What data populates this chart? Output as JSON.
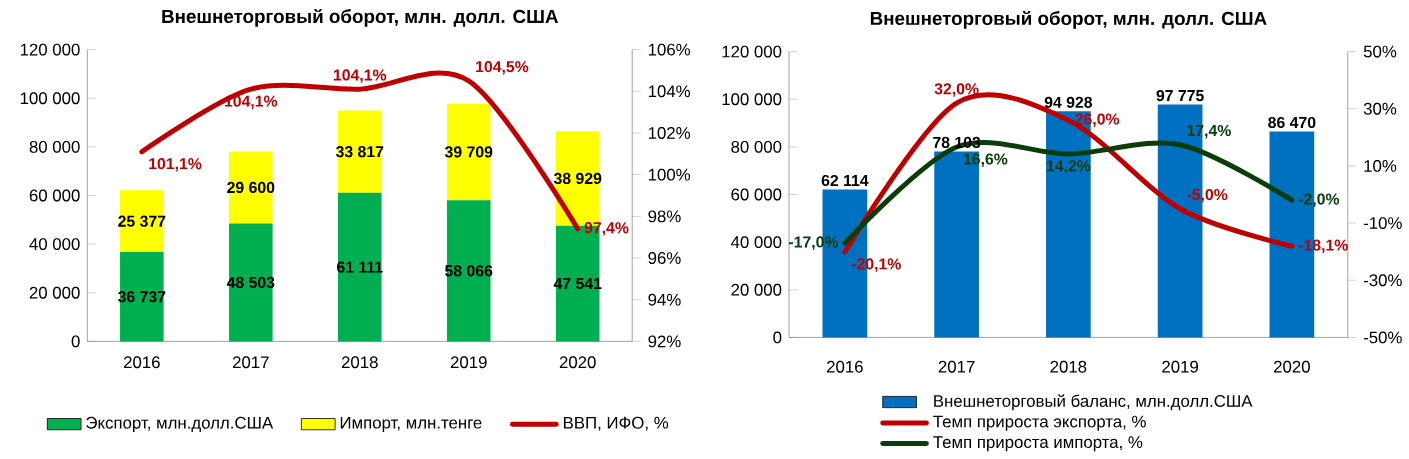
{
  "chart_data": [
    {
      "type": "bar",
      "title": "Внешнеторговый оборот, млн. долл. США",
      "stacked": true,
      "legend": "bottom",
      "categories": [
        "2016",
        "2017",
        "2018",
        "2019",
        "2020"
      ],
      "series": [
        {
          "name": "Экспорт, млн.долл.США",
          "color": "#00b050",
          "values": [
            36737,
            48503,
            61111,
            58066,
            47541
          ],
          "value_labels": [
            "36 737",
            "48 503",
            "61 111",
            "58 066",
            "47 541"
          ]
        },
        {
          "name": "Импорт, млн.тенге",
          "color": "#ffff00",
          "values": [
            25377,
            29600,
            33817,
            39709,
            38929
          ],
          "value_labels": [
            "25 377",
            "29 600",
            "33 817",
            "39 709",
            "38 929"
          ]
        },
        {
          "name": "ВВП, ИФО, %",
          "type": "line",
          "axis": "y2",
          "color": "#c00000",
          "values": [
            101.1,
            104.1,
            104.1,
            104.5,
            97.4
          ],
          "value_labels": [
            "101,1%",
            "104,1%",
            "104,1%",
            "104,5%",
            "97,4%"
          ]
        }
      ],
      "ylim": [
        0,
        120000
      ],
      "yticks": [
        {
          "value": 0,
          "label": "0"
        },
        {
          "value": 20000,
          "label": "20 000"
        },
        {
          "value": 40000,
          "label": "40 000"
        },
        {
          "value": 60000,
          "label": "60 000"
        },
        {
          "value": 80000,
          "label": "80 000"
        },
        {
          "value": 100000,
          "label": "100 000"
        },
        {
          "value": 120000,
          "label": "120 000"
        }
      ],
      "y2lim": [
        92,
        106
      ],
      "y2ticks": [
        {
          "value": 92,
          "label": "92%"
        },
        {
          "value": 94,
          "label": "94%"
        },
        {
          "value": 96,
          "label": "96%"
        },
        {
          "value": 98,
          "label": "98%"
        },
        {
          "value": 100,
          "label": "100%"
        },
        {
          "value": 102,
          "label": "102%"
        },
        {
          "value": 104,
          "label": "104%"
        },
        {
          "value": 106,
          "label": "106%"
        }
      ]
    },
    {
      "type": "bar",
      "title": "Внешнеторговый оборот, млн. долл. США",
      "legend": "bottom",
      "categories": [
        "2016",
        "2017",
        "2018",
        "2019",
        "2020"
      ],
      "series": [
        {
          "name": "Внешнеторговый баланс, млн.долл.США",
          "color": "#0070c0",
          "values": [
            62114,
            78103,
            94928,
            97775,
            86470
          ],
          "value_labels": [
            "62 114",
            "78 103",
            "94 928",
            "97 775",
            "86 470"
          ]
        },
        {
          "name": "Темп прироста экспорта, %",
          "type": "line",
          "axis": "y2",
          "color": "#c00000",
          "values": [
            -20.1,
            32.0,
            26.0,
            -5.0,
            -18.1
          ],
          "value_labels": [
            "-20,1%",
            "32,0%",
            "26,0%",
            "-5,0%",
            "-18,1%"
          ]
        },
        {
          "name": "Темп прироста импорта, %",
          "type": "line",
          "axis": "y2",
          "color": "#0b3d0b",
          "values": [
            -17.0,
            16.6,
            14.2,
            17.4,
            -2.0
          ],
          "value_labels": [
            "-17,0%",
            "16,6%",
            "14,2%",
            "17,4%",
            "-2,0%"
          ]
        }
      ],
      "ylim": [
        0,
        120000
      ],
      "yticks": [
        {
          "value": 0,
          "label": "0"
        },
        {
          "value": 20000,
          "label": "20 000"
        },
        {
          "value": 40000,
          "label": "40 000"
        },
        {
          "value": 60000,
          "label": "60 000"
        },
        {
          "value": 80000,
          "label": "80 000"
        },
        {
          "value": 100000,
          "label": "100 000"
        },
        {
          "value": 120000,
          "label": "120 000"
        }
      ],
      "y2lim": [
        -50,
        50
      ],
      "y2ticks": [
        {
          "value": -50,
          "label": "-50%"
        },
        {
          "value": -30,
          "label": "-30%"
        },
        {
          "value": -10,
          "label": "-10%"
        },
        {
          "value": 10,
          "label": "10%"
        },
        {
          "value": 30,
          "label": "30%"
        },
        {
          "value": 50,
          "label": "50%"
        }
      ]
    }
  ]
}
